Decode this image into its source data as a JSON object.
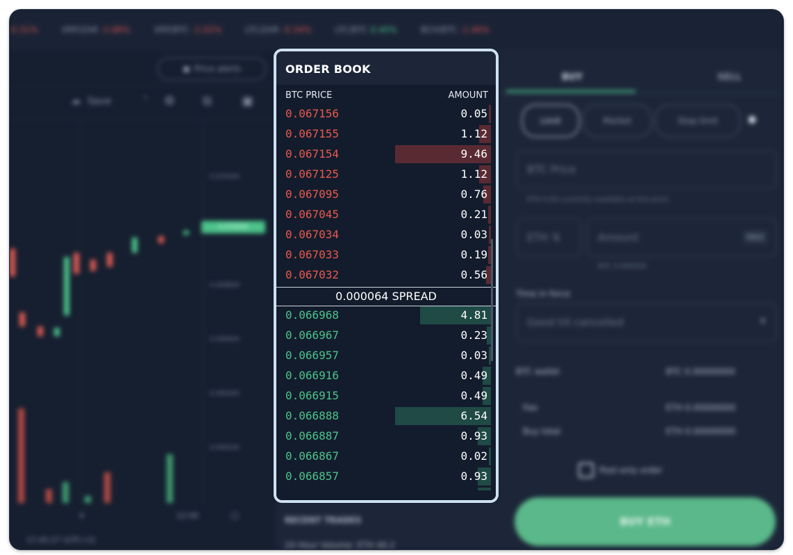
{
  "ticker": [
    {
      "pair": "",
      "change": "-0.31%",
      "dir": "neg"
    },
    {
      "pair": "XRP/ZAR",
      "change": "-2.88%",
      "dir": "neg"
    },
    {
      "pair": "XRP/BTC",
      "change": "-2.02%",
      "dir": "neg"
    },
    {
      "pair": "LTC/ZAR",
      "change": "-0.34%",
      "dir": "neg"
    },
    {
      "pair": "LTC/BTC",
      "change": "0.40%",
      "dir": "pos"
    },
    {
      "pair": "BCH/BTC",
      "change": "-1.46%",
      "dir": "neg"
    }
  ],
  "chart": {
    "price_alerts_label": "Price alerts",
    "save_label": "Save",
    "axis_prices": [
      "0.070200",
      "0.070000",
      "0.069800",
      "0.069600",
      "0.069400",
      "0.069200"
    ],
    "current_price": "0.070000",
    "time_label": "12:00",
    "day_label": "4",
    "timestamp": "17:45:27 (UTC+2)",
    "pct_label": "%",
    "log_label": "log",
    "auto_label": "auto"
  },
  "order_book": {
    "title": "ORDER BOOK",
    "col_price": "BTC PRICE",
    "col_amount": "AMOUNT",
    "asks": [
      {
        "price": "0.067156",
        "amount": "0.05",
        "depth": 0.02
      },
      {
        "price": "0.067155",
        "amount": "1.12",
        "depth": 0.12
      },
      {
        "price": "0.067154",
        "amount": "9.46",
        "depth": 1.0
      },
      {
        "price": "0.067125",
        "amount": "1.12",
        "depth": 0.12
      },
      {
        "price": "0.067095",
        "amount": "0.76",
        "depth": 0.08
      },
      {
        "price": "0.067045",
        "amount": "0.21",
        "depth": 0.03
      },
      {
        "price": "0.067034",
        "amount": "0.03",
        "depth": 0.02
      },
      {
        "price": "0.067033",
        "amount": "0.19",
        "depth": 0.03
      },
      {
        "price": "0.067032",
        "amount": "0.56",
        "depth": 0.05
      }
    ],
    "spread": "0.000064 SPREAD",
    "bids": [
      {
        "price": "0.066968",
        "amount": "4.81",
        "depth": 0.74
      },
      {
        "price": "0.066967",
        "amount": "0.23",
        "depth": 0.04
      },
      {
        "price": "0.066957",
        "amount": "0.03",
        "depth": 0.02
      },
      {
        "price": "0.066916",
        "amount": "0.49",
        "depth": 0.09
      },
      {
        "price": "0.066915",
        "amount": "0.49",
        "depth": 0.09
      },
      {
        "price": "0.066888",
        "amount": "6.54",
        "depth": 1.0
      },
      {
        "price": "0.066887",
        "amount": "0.93",
        "depth": 0.14
      },
      {
        "price": "0.066867",
        "amount": "0.02",
        "depth": 0.02
      },
      {
        "price": "0.066857",
        "amount": "0.93",
        "depth": 0.14
      },
      {
        "price": "0.066807",
        "amount": "0.93",
        "depth": 0.14
      }
    ]
  },
  "recent_trades": {
    "title": "RECENT TRADES",
    "volume_label": "24 Hour Volume:",
    "volume_value": "ETH 40.2"
  },
  "trade_panel": {
    "tab_buy": "BUY",
    "tab_sell": "SELL",
    "order_types": [
      "Limit",
      "Market",
      "Stop-limit"
    ],
    "price_placeholder": "BTC Price",
    "availability_note": "ETH 0.00 currently available at this price",
    "currency_toggle": "ETH",
    "amount_placeholder": "Amount",
    "max_label": "MAX",
    "amount_btc": "BTC 0.000000",
    "time_in_force_label": "Time in force",
    "time_in_force_value": "Good till cancelled",
    "wallet_label": "BTC wallet",
    "wallet_value": "BTC 0.00000000",
    "fee_label": "Fee",
    "fee_value": "ETH 0.00000000",
    "buy_total_label": "Buy total",
    "buy_total_value": "ETH 0.00000000",
    "post_only_label": "Post-only order",
    "buy_button": "BUY ETH"
  },
  "colors": {
    "ask": "#e8594e",
    "bid": "#4cc38a",
    "panel": "#131c2c",
    "highlight_border": "#cfe0f3"
  }
}
